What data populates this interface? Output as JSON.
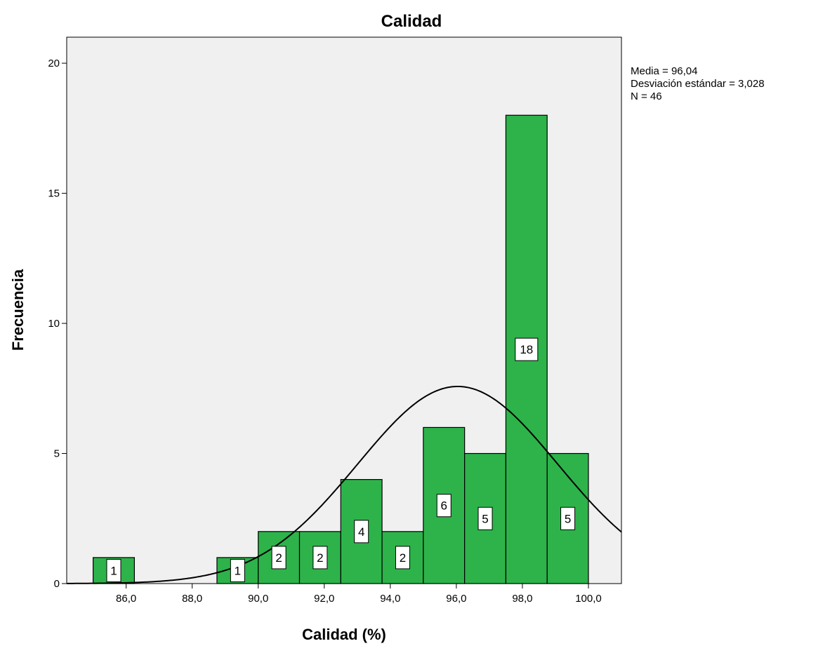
{
  "chart_data": {
    "type": "bar",
    "title": "Calidad",
    "xlabel": "Calidad (%)",
    "ylabel": "Frecuencia",
    "xlim": [
      84.2,
      101.0
    ],
    "ylim": [
      0,
      21
    ],
    "grid": false,
    "colors": {
      "bar_fill": "#2DB34A",
      "plot_background": "#F0F0F0",
      "curve": "#000000"
    },
    "x_ticks": [
      {
        "value": 86,
        "label": "86,0"
      },
      {
        "value": 88,
        "label": "88,0"
      },
      {
        "value": 90,
        "label": "90,0"
      },
      {
        "value": 92,
        "label": "92,0"
      },
      {
        "value": 94,
        "label": "94,0"
      },
      {
        "value": 96,
        "label": "96,0"
      },
      {
        "value": 98,
        "label": "98,0"
      },
      {
        "value": 100,
        "label": "100,0"
      }
    ],
    "y_ticks": [
      {
        "value": 0,
        "label": "0"
      },
      {
        "value": 5,
        "label": "5"
      },
      {
        "value": 10,
        "label": "10"
      },
      {
        "value": 15,
        "label": "15"
      },
      {
        "value": 20,
        "label": "20"
      }
    ],
    "bins": [
      {
        "start": 85.0,
        "end": 86.25,
        "count": 1,
        "label": "1"
      },
      {
        "start": 88.75,
        "end": 90.0,
        "count": 1,
        "label": "1"
      },
      {
        "start": 90.0,
        "end": 91.25,
        "count": 2,
        "label": "2"
      },
      {
        "start": 91.25,
        "end": 92.5,
        "count": 2,
        "label": "2"
      },
      {
        "start": 92.5,
        "end": 93.75,
        "count": 4,
        "label": "4"
      },
      {
        "start": 93.75,
        "end": 95.0,
        "count": 2,
        "label": "2"
      },
      {
        "start": 95.0,
        "end": 96.25,
        "count": 6,
        "label": "6"
      },
      {
        "start": 96.25,
        "end": 97.5,
        "count": 5,
        "label": "5"
      },
      {
        "start": 97.5,
        "end": 98.75,
        "count": 18,
        "label": "18"
      },
      {
        "start": 98.75,
        "end": 100.0,
        "count": 5,
        "label": "5"
      }
    ],
    "normal_curve": {
      "mean": 96.04,
      "sd": 3.028,
      "n": 46,
      "bin_width": 1.25
    },
    "stats_lines": [
      "Media = 96,04",
      "Desviación estándar = 3,028",
      "N = 46"
    ]
  }
}
